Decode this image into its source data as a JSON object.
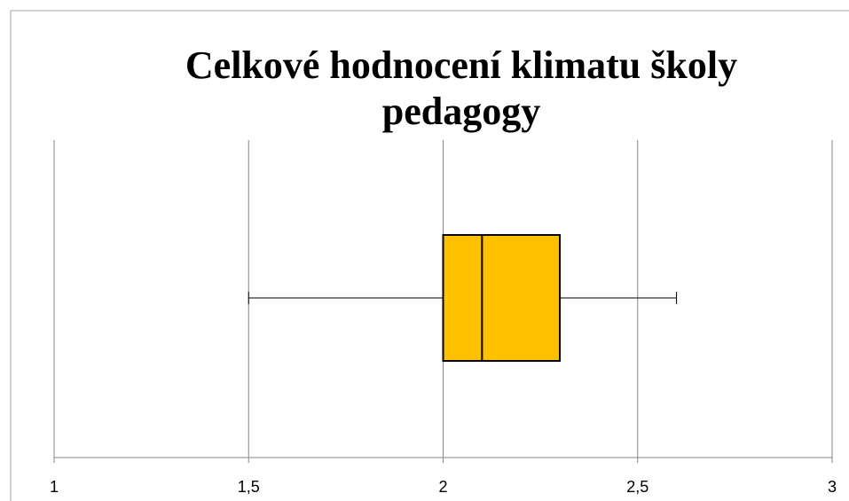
{
  "chart_data": {
    "type": "box",
    "title": [
      "Celkové hodnocení klimatu školy",
      "pedagogy"
    ],
    "boxes": [
      {
        "min": 1.5,
        "q1": 2,
        "median": 2.1,
        "q3": 2.3,
        "max": 2.6
      }
    ],
    "color": "#ffc000",
    "xlim": [
      1,
      3
    ],
    "xticks": [
      1,
      {
        "value": 1.5,
        "label": "1,5"
      },
      2,
      {
        "value": 2.5,
        "label": "2,5"
      },
      3
    ],
    "grid": true
  }
}
